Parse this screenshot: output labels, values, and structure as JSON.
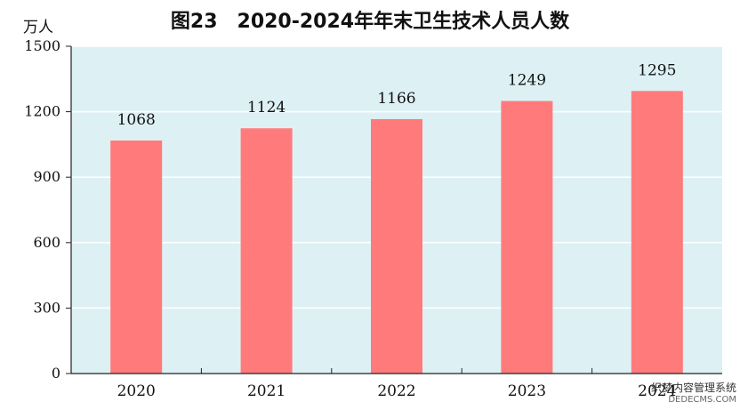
{
  "chart_data": {
    "type": "bar",
    "title": "图23　2020-2024年年末卫生技术人员人数",
    "unit_label": "万人",
    "categories": [
      "2020",
      "2021",
      "2022",
      "2023",
      "2024"
    ],
    "values": [
      1068,
      1124,
      1166,
      1249,
      1295
    ],
    "xlabel": "",
    "ylabel": "",
    "ylim": [
      0,
      1500
    ],
    "yticks": [
      0,
      300,
      600,
      900,
      1200,
      1500
    ],
    "grid": true,
    "legend": "none",
    "colors": {
      "bar": "#FF7B7B",
      "plot_bg": "#DDF1F5",
      "grid": "#FFFFFF",
      "axis": "#222222"
    }
  },
  "watermark": {
    "text": "织梦内容管理系统",
    "url": "DEDECMS.COM"
  }
}
